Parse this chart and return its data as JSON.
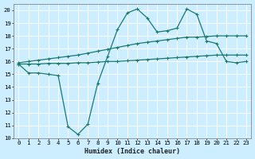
{
  "title": "",
  "xlabel": "Humidex (Indice chaleur)",
  "bg_color": "#cceeff",
  "grid_color": "#ffffff",
  "line_color": "#1a7a6e",
  "xlim": [
    -0.5,
    23.5
  ],
  "ylim": [
    10,
    20.5
  ],
  "yticks": [
    10,
    11,
    12,
    13,
    14,
    15,
    16,
    17,
    18,
    19,
    20
  ],
  "xticks": [
    0,
    1,
    2,
    3,
    4,
    5,
    6,
    7,
    8,
    9,
    10,
    11,
    12,
    13,
    14,
    15,
    16,
    17,
    18,
    19,
    20,
    21,
    22,
    23
  ],
  "line_main_x": [
    0,
    1,
    2,
    3,
    4,
    5,
    6,
    7,
    8,
    9,
    10,
    11,
    12,
    13,
    14,
    15,
    16,
    17,
    18,
    19,
    20,
    21,
    22,
    23
  ],
  "line_main_y": [
    15.8,
    15.1,
    15.1,
    15.0,
    14.9,
    10.9,
    10.3,
    11.1,
    14.3,
    16.4,
    18.5,
    19.8,
    20.1,
    19.4,
    18.3,
    18.4,
    18.6,
    20.1,
    19.7,
    17.6,
    17.4,
    16.0,
    15.9,
    16.0
  ],
  "line_upper_x": [
    0,
    1,
    2,
    3,
    4,
    5,
    6,
    7,
    8,
    9,
    10,
    11,
    12,
    13,
    14,
    15,
    16,
    17,
    18,
    19,
    20,
    21,
    22,
    23
  ],
  "line_upper_y": [
    15.9,
    16.0,
    16.1,
    16.2,
    16.3,
    16.4,
    16.5,
    16.65,
    16.8,
    16.95,
    17.1,
    17.25,
    17.4,
    17.5,
    17.6,
    17.7,
    17.8,
    17.9,
    17.9,
    17.95,
    18.0,
    18.0,
    18.0,
    18.0
  ],
  "line_lower_x": [
    0,
    1,
    2,
    3,
    4,
    5,
    6,
    7,
    8,
    9,
    10,
    11,
    12,
    13,
    14,
    15,
    16,
    17,
    18,
    19,
    20,
    21,
    22,
    23
  ],
  "line_lower_y": [
    15.8,
    15.8,
    15.8,
    15.85,
    15.85,
    15.85,
    15.9,
    15.9,
    15.95,
    16.0,
    16.0,
    16.05,
    16.1,
    16.15,
    16.2,
    16.25,
    16.3,
    16.35,
    16.4,
    16.45,
    16.5,
    16.5,
    16.5,
    16.5
  ]
}
